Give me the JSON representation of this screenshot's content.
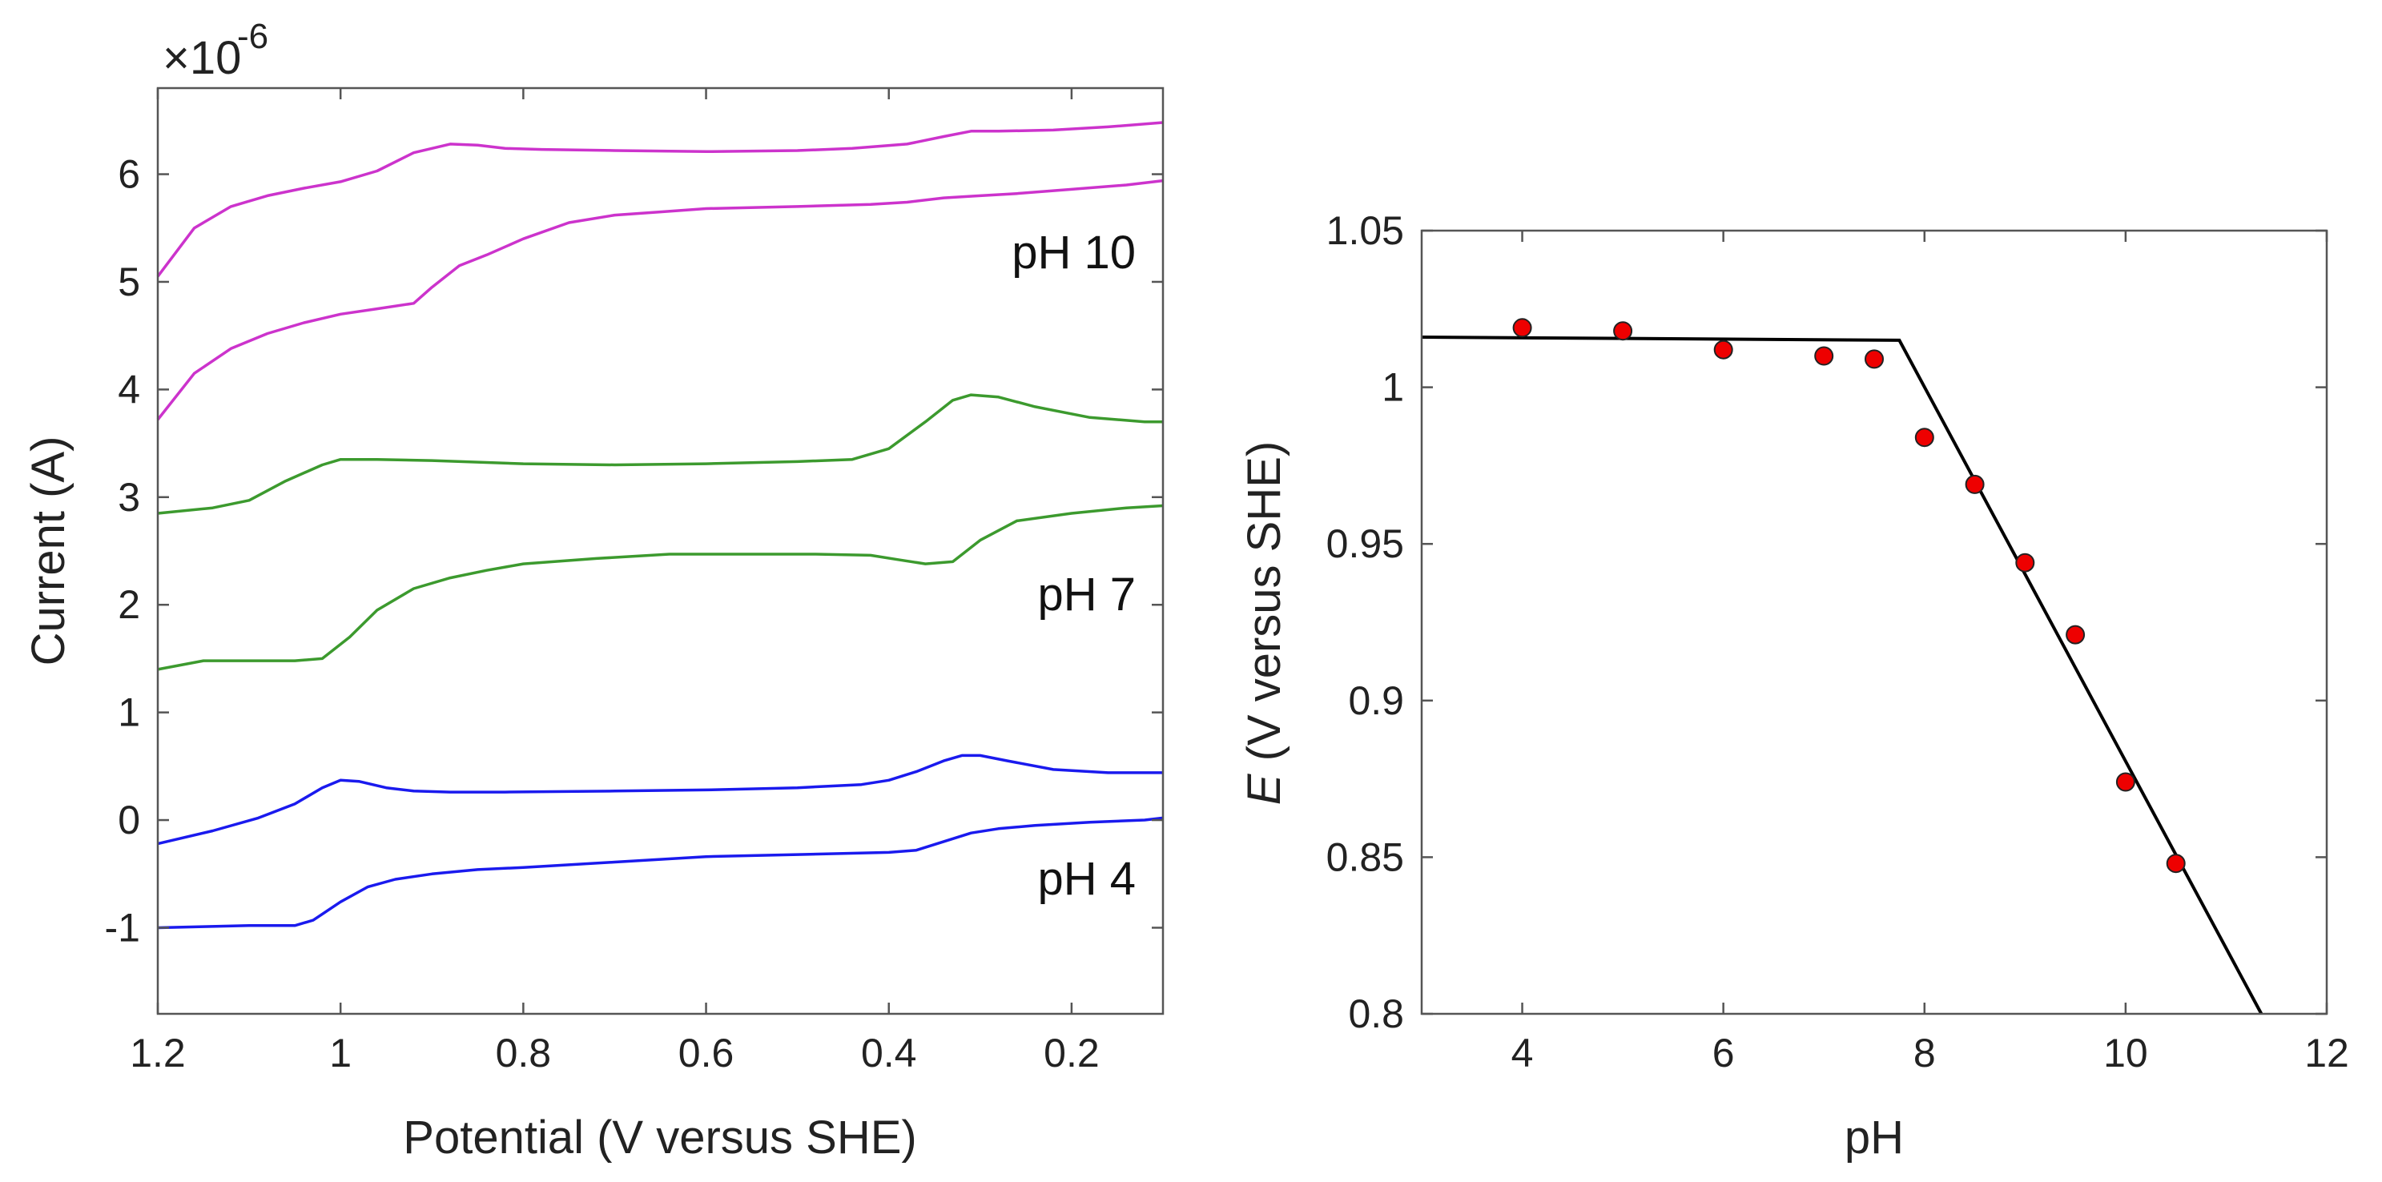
{
  "chart_data": [
    {
      "type": "line",
      "title": "",
      "xlabel": "Potential (V versus SHE)",
      "ylabel": "Current (A)",
      "exponent": {
        "base": "×10",
        "power": "-6"
      },
      "xlim": [
        1.2,
        0.1
      ],
      "ylim": [
        -1.8,
        6.8
      ],
      "xticks": [
        1.2,
        1.0,
        0.8,
        0.6,
        0.4,
        0.2
      ],
      "xtick_labels": [
        "1.2",
        "1",
        "0.8",
        "0.6",
        "0.4",
        "0.2"
      ],
      "yticks": [
        -1,
        0,
        1,
        2,
        3,
        4,
        5,
        6
      ],
      "ytick_labels": [
        "-1",
        "0",
        "1",
        "2",
        "3",
        "4",
        "5",
        "6"
      ],
      "grid": false,
      "colors": {
        "pH10": "#cc33cc",
        "pH7": "#3c9a2e",
        "pH4": "#1a1aee"
      },
      "annotations": [
        {
          "text": "pH 10",
          "x": 0.27,
          "y": 5.1
        },
        {
          "text": "pH 7",
          "x": 0.27,
          "y": 2.1
        },
        {
          "text": "pH 4",
          "x": 0.27,
          "y": -0.6
        }
      ],
      "series": [
        {
          "name": "pH 10 upper",
          "color_key": "pH10",
          "x": [
            1.2,
            1.16,
            1.12,
            1.08,
            1.04,
            1.0,
            0.96,
            0.92,
            0.88,
            0.85,
            0.82,
            0.78,
            0.7,
            0.6,
            0.5,
            0.44,
            0.38,
            0.34,
            0.31,
            0.28,
            0.22,
            0.16,
            0.1
          ],
          "y": [
            5.05,
            5.5,
            5.7,
            5.8,
            5.87,
            5.93,
            6.03,
            6.2,
            6.28,
            6.27,
            6.24,
            6.23,
            6.22,
            6.21,
            6.22,
            6.24,
            6.28,
            6.35,
            6.4,
            6.4,
            6.41,
            6.44,
            6.48
          ]
        },
        {
          "name": "pH 10 lower",
          "color_key": "pH10",
          "x": [
            1.2,
            1.16,
            1.12,
            1.08,
            1.04,
            1.0,
            0.96,
            0.92,
            0.9,
            0.87,
            0.84,
            0.8,
            0.75,
            0.7,
            0.65,
            0.6,
            0.5,
            0.42,
            0.38,
            0.34,
            0.3,
            0.26,
            0.2,
            0.14,
            0.1
          ],
          "y": [
            3.72,
            4.15,
            4.38,
            4.52,
            4.62,
            4.7,
            4.75,
            4.8,
            4.95,
            5.15,
            5.25,
            5.4,
            5.55,
            5.62,
            5.65,
            5.68,
            5.7,
            5.72,
            5.74,
            5.78,
            5.8,
            5.82,
            5.86,
            5.9,
            5.94
          ]
        },
        {
          "name": "pH 7 upper",
          "color_key": "pH7",
          "x": [
            1.2,
            1.14,
            1.1,
            1.06,
            1.02,
            1.0,
            0.96,
            0.9,
            0.8,
            0.7,
            0.6,
            0.5,
            0.44,
            0.4,
            0.36,
            0.33,
            0.31,
            0.28,
            0.24,
            0.18,
            0.12,
            0.1
          ],
          "y": [
            2.85,
            2.9,
            2.97,
            3.15,
            3.3,
            3.35,
            3.35,
            3.34,
            3.31,
            3.3,
            3.31,
            3.33,
            3.35,
            3.45,
            3.7,
            3.9,
            3.95,
            3.93,
            3.84,
            3.74,
            3.7,
            3.7
          ]
        },
        {
          "name": "pH 7 lower",
          "color_key": "pH7",
          "x": [
            1.2,
            1.15,
            1.1,
            1.05,
            1.02,
            0.99,
            0.96,
            0.92,
            0.88,
            0.84,
            0.8,
            0.72,
            0.64,
            0.56,
            0.48,
            0.42,
            0.39,
            0.36,
            0.33,
            0.3,
            0.26,
            0.2,
            0.14,
            0.1
          ],
          "y": [
            1.4,
            1.48,
            1.48,
            1.48,
            1.5,
            1.7,
            1.95,
            2.15,
            2.25,
            2.32,
            2.38,
            2.43,
            2.47,
            2.47,
            2.47,
            2.46,
            2.42,
            2.38,
            2.4,
            2.6,
            2.78,
            2.85,
            2.9,
            2.92
          ]
        },
        {
          "name": "pH 4 upper",
          "color_key": "pH4",
          "x": [
            1.2,
            1.14,
            1.09,
            1.05,
            1.02,
            1.0,
            0.98,
            0.95,
            0.92,
            0.88,
            0.82,
            0.7,
            0.6,
            0.5,
            0.43,
            0.4,
            0.37,
            0.34,
            0.32,
            0.3,
            0.27,
            0.22,
            0.16,
            0.1
          ],
          "y": [
            -0.22,
            -0.1,
            0.02,
            0.15,
            0.3,
            0.37,
            0.36,
            0.3,
            0.27,
            0.26,
            0.26,
            0.27,
            0.28,
            0.3,
            0.33,
            0.37,
            0.45,
            0.55,
            0.6,
            0.6,
            0.55,
            0.47,
            0.44,
            0.44
          ]
        },
        {
          "name": "pH 4 lower",
          "color_key": "pH4",
          "x": [
            1.2,
            1.15,
            1.1,
            1.05,
            1.03,
            1.0,
            0.97,
            0.94,
            0.9,
            0.85,
            0.8,
            0.7,
            0.6,
            0.5,
            0.4,
            0.37,
            0.34,
            0.31,
            0.28,
            0.24,
            0.18,
            0.12,
            0.1
          ],
          "y": [
            -1.0,
            -0.99,
            -0.98,
            -0.98,
            -0.93,
            -0.76,
            -0.62,
            -0.55,
            -0.5,
            -0.46,
            -0.44,
            -0.39,
            -0.34,
            -0.32,
            -0.3,
            -0.28,
            -0.2,
            -0.12,
            -0.08,
            -0.05,
            -0.02,
            0.0,
            0.02
          ]
        }
      ]
    },
    {
      "type": "scatter",
      "title": "",
      "xlabel": "pH",
      "ylabel_italic": "E",
      "ylabel_rest": " (V versus SHE)",
      "xlim": [
        3,
        12
      ],
      "ylim": [
        0.8,
        1.05
      ],
      "xticks": [
        4,
        6,
        8,
        10,
        12
      ],
      "xtick_labels": [
        "4",
        "6",
        "8",
        "10",
        "12"
      ],
      "yticks": [
        0.8,
        0.85,
        0.9,
        0.95,
        1.0,
        1.05
      ],
      "ytick_labels": [
        "0.8",
        "0.85",
        "0.9",
        "0.95",
        "1",
        "1.05"
      ],
      "grid": false,
      "marker_color": "#ee0000",
      "fit_color": "#000000",
      "points": {
        "x": [
          4,
          5,
          6,
          7,
          7.5,
          8,
          8.5,
          9,
          9.5,
          10,
          10.5
        ],
        "y": [
          1.019,
          1.018,
          1.012,
          1.01,
          1.009,
          0.984,
          0.969,
          0.944,
          0.921,
          0.874,
          0.848
        ]
      },
      "fit_line": {
        "x": [
          3,
          7.75,
          11.35
        ],
        "y": [
          1.016,
          1.015,
          0.8
        ]
      }
    }
  ]
}
